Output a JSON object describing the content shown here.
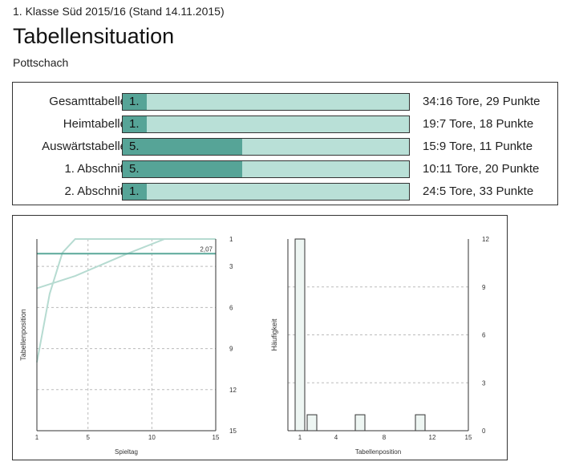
{
  "header": {
    "subtitle": "1. Klasse Süd 2015/16 (Stand 14.11.2015)",
    "title": "Tabellensituation",
    "team": "Pottschach"
  },
  "standings": {
    "num_positions": 12,
    "rows": [
      {
        "label": "Gesamttabelle",
        "rank": 1,
        "rank_label": "1.",
        "stat": "34:16 Tore, 29 Punkte"
      },
      {
        "label": "Heimtabelle",
        "rank": 1,
        "rank_label": "1.",
        "stat": "19:7 Tore, 18 Punkte"
      },
      {
        "label": "Auswärtstabelle",
        "rank": 5,
        "rank_label": "5.",
        "stat": "15:9 Tore, 11 Punkte"
      },
      {
        "label": "1. Abschnitt",
        "rank": 5,
        "rank_label": "5.",
        "stat": "10:11 Tore, 20 Punkte"
      },
      {
        "label": "2. Abschnitt",
        "rank": 1,
        "rank_label": "1.",
        "stat": "24:5 Tore, 33 Punkte"
      }
    ]
  },
  "colors": {
    "bar_bg": "#b9e0d7",
    "bar_fill": "#56a497",
    "line_light": "#b6dbd1",
    "line_dark": "#5aa89a",
    "hist_fill": "#eef6f3"
  },
  "chart_data": [
    {
      "type": "line",
      "xlabel": "Spieltag",
      "ylabel": "Tabellenposition",
      "xlim": [
        1,
        15
      ],
      "ylim": [
        15,
        1
      ],
      "xticks": [
        1,
        5,
        10,
        15
      ],
      "yticks": [
        1,
        3,
        6,
        9,
        12,
        15
      ],
      "grid": true,
      "series": [
        {
          "x": [
            1,
            2,
            3,
            4,
            10,
            15
          ],
          "y": [
            10,
            5,
            2,
            1,
            1,
            1
          ]
        },
        {
          "x": [
            1,
            4,
            8,
            11,
            15
          ],
          "y": [
            4.6,
            3.7,
            2.1,
            1,
            1
          ]
        },
        {
          "x": [
            1,
            15
          ],
          "y": [
            2.07,
            2.07
          ]
        }
      ],
      "annotations": [
        {
          "text": "2,07",
          "x": 15,
          "y": 2.07
        }
      ]
    },
    {
      "type": "bar",
      "xlabel": "Tabellenposition",
      "ylabel": "Häufigkeit",
      "xlim": [
        0,
        15
      ],
      "ylim": [
        0,
        12
      ],
      "xticks": [
        1,
        4,
        8,
        12,
        15
      ],
      "yticks": [
        0,
        3,
        6,
        9,
        12
      ],
      "grid": true,
      "categories": [
        1,
        2,
        6,
        11
      ],
      "values": [
        12,
        1,
        1,
        1
      ]
    }
  ]
}
